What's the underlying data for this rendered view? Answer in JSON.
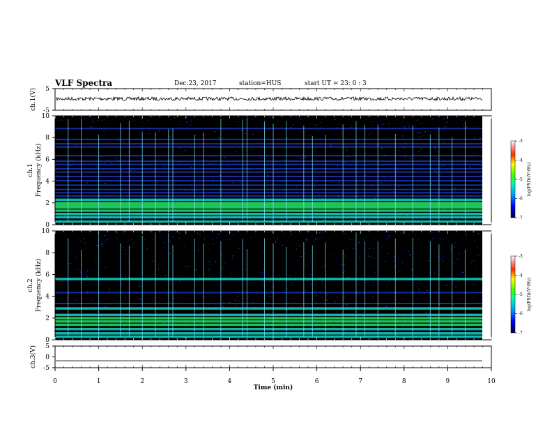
{
  "header": {
    "title": "VLF Spectra",
    "date": "Dec.23, 2017",
    "station": "station=HUS",
    "start": "start  UT =   23: 0  : 3"
  },
  "chart_data": [
    {
      "type": "line",
      "panel": "ch1-waveform",
      "ylabel": "ch.1(V)",
      "ylim": [
        -5,
        5
      ],
      "yticks": [
        "5",
        "-5"
      ],
      "series_level": 0.0
    },
    {
      "type": "heatmap",
      "panel": "ch1-spectrogram",
      "ylabel": "ch.1 Frequency (kHz)",
      "ylim": [
        0,
        10
      ],
      "yticks": [
        "0",
        "2",
        "4",
        "6",
        "8",
        "10"
      ],
      "colorbar": {
        "label": "log(PSD)(V²/Hz)",
        "ticks": [
          "-3",
          "-4",
          "-5",
          "-6",
          "-7"
        ],
        "range": [
          -7,
          -3
        ]
      },
      "bands_khz": [
        0.3,
        0.7,
        1.0,
        1.3,
        1.6,
        1.8,
        2.0,
        2.3,
        2.6,
        2.9,
        3.2,
        3.6,
        4.0,
        4.4,
        4.8,
        5.1,
        5.5,
        5.8,
        6.3,
        7.1,
        7.4,
        7.8,
        8.8
      ],
      "sferic_times_min": [
        0.3,
        0.6,
        1.0,
        1.5,
        1.7,
        2.0,
        2.3,
        2.6,
        2.7,
        3.2,
        3.4,
        3.8,
        4.3,
        4.4,
        4.8,
        5.0,
        5.3,
        5.7,
        5.9,
        6.2,
        6.6,
        6.9,
        7.1,
        7.4,
        7.8,
        8.2,
        8.6,
        8.8,
        9.1,
        9.4
      ]
    },
    {
      "type": "heatmap",
      "panel": "ch2-spectrogram",
      "ylabel": "ch.2 Frequency (kHz)",
      "ylim": [
        0,
        10
      ],
      "yticks": [
        "0",
        "2",
        "4",
        "6",
        "8",
        "10"
      ],
      "colorbar": {
        "label": "log(PSD)(V²/Hz)",
        "ticks": [
          "-3",
          "-4",
          "-5",
          "-6",
          "-7"
        ],
        "range": [
          -7,
          -3
        ]
      },
      "bands_khz": [
        0.3,
        0.6,
        1.0,
        1.4,
        1.7,
        2.0,
        2.3,
        2.9,
        3.3,
        4.3,
        5.6
      ],
      "sferic_times_min": [
        0.3,
        0.6,
        1.0,
        1.5,
        1.7,
        2.0,
        2.3,
        2.6,
        2.7,
        3.2,
        3.4,
        3.8,
        4.3,
        4.4,
        4.8,
        5.0,
        5.3,
        5.7,
        5.9,
        6.2,
        6.6,
        6.9,
        7.1,
        7.4,
        7.8,
        8.2,
        8.6,
        8.8,
        9.1,
        9.4
      ]
    },
    {
      "type": "line",
      "panel": "ch3-waveform",
      "ylabel": "ch.3(V)",
      "ylim": [
        -5,
        5
      ],
      "yticks": [
        "5",
        "0",
        "-5"
      ],
      "series_level": -1.8
    }
  ],
  "xaxis": {
    "label": "Time  (min)",
    "xlim": [
      0,
      10
    ],
    "ticks": [
      "0",
      "1",
      "2",
      "3",
      "4",
      "5",
      "6",
      "7",
      "8",
      "9",
      "10"
    ]
  },
  "colors": {
    "background": "#000000",
    "band_low": "#1f3fd8",
    "band_mid": "#13d6c8",
    "band_hi": "#26e06a",
    "sferic": "#7fe8ff"
  }
}
